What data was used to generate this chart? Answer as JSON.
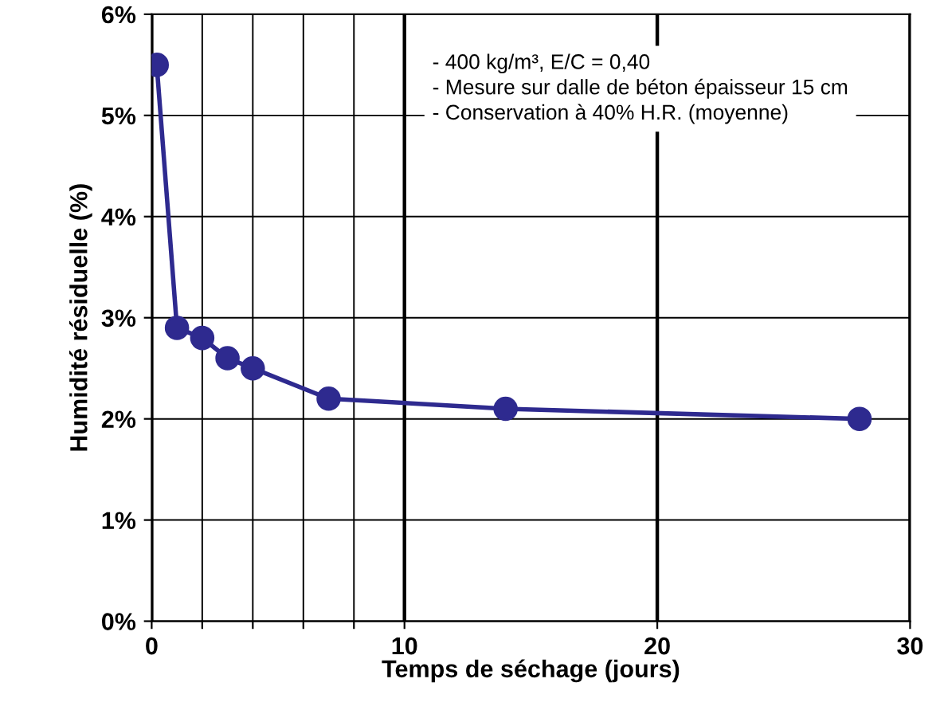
{
  "chart_data": {
    "type": "line",
    "xlabel": "Temps de séchage (jours)",
    "ylabel": "Humidité résiduelle (%)",
    "x": [
      0.2,
      1,
      2,
      3,
      4,
      7,
      14,
      28
    ],
    "series": [
      {
        "color": "#2e2a8f",
        "values": [
          5.5,
          2.9,
          2.8,
          2.6,
          2.5,
          2.2,
          2.1,
          2.0
        ]
      }
    ],
    "xlim": [
      0,
      30
    ],
    "xticks": [
      0,
      {
        "value": 2,
        "label": null
      },
      {
        "value": 4,
        "label": null
      },
      {
        "value": 6,
        "label": null
      },
      {
        "value": 8,
        "label": null
      },
      10,
      20,
      30
    ],
    "ylim": [
      0,
      6
    ],
    "yticks": [
      {
        "value": 0,
        "label": "0%"
      },
      {
        "value": 1,
        "label": "1%"
      },
      {
        "value": 2,
        "label": "2%"
      },
      {
        "value": 3,
        "label": "3%"
      },
      {
        "value": 4,
        "label": "4%"
      },
      {
        "value": 5,
        "label": "5%"
      },
      {
        "value": 6,
        "label": "6%"
      }
    ],
    "grid": true,
    "marker": "circle",
    "line_style": "solid",
    "annotations": [
      "- 400 kg/m³, E/C = 0,40\n- Mesure sur dalle de béton épaisseur 15 cm\n- Conservation à 40% H.R. (moyenne)"
    ]
  }
}
